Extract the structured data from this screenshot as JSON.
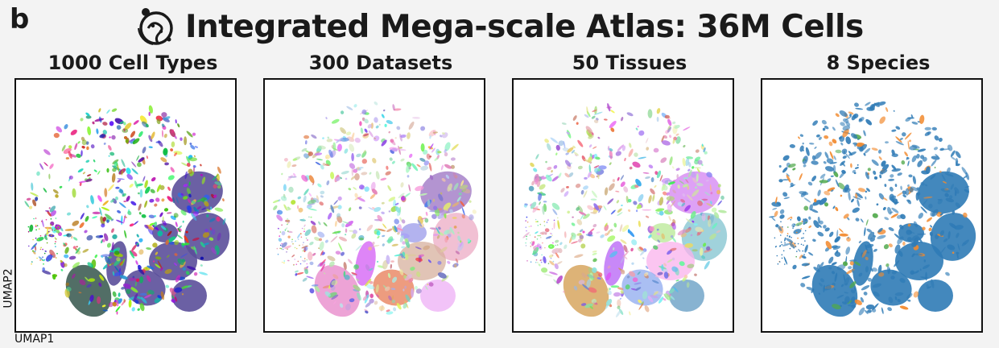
{
  "panel_label": "b",
  "title": "Integrated Mega-scale Atlas: 36M Cells",
  "chart_data": [
    {
      "type": "scatter",
      "title": "1000 Cell Types",
      "xlabel": "UMAP1",
      "ylabel": "UMAP2",
      "color_mode": "categorical-rainbow",
      "categories": 1000
    },
    {
      "type": "scatter",
      "title": "300 Datasets",
      "xlabel": "",
      "ylabel": "",
      "color_mode": "categorical-pastel",
      "categories": 300
    },
    {
      "type": "scatter",
      "title": "50 Tissues",
      "xlabel": "",
      "ylabel": "",
      "color_mode": "categorical-pastel",
      "categories": 50
    },
    {
      "type": "scatter",
      "title": "8 Species",
      "xlabel": "",
      "ylabel": "",
      "color_mode": "species",
      "categories": 8
    }
  ],
  "colors": {
    "blob_purple": "#5b4f9a",
    "blob_dark_green": "#3f5e55",
    "species_blue": "#2f7bb6",
    "species_orange": "#f28a2e",
    "species_green": "#4fa84a"
  }
}
